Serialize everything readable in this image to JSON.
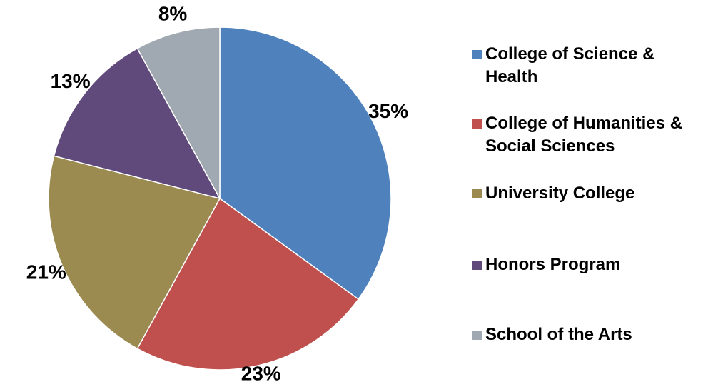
{
  "chart_data": {
    "type": "pie",
    "categories": [
      "College of Science & Health",
      "College of Humanities & Social Sciences",
      "University College",
      "Honors Program",
      "School of the Arts"
    ],
    "values": [
      35,
      23,
      21,
      13,
      8
    ],
    "value_labels": [
      "35%",
      "23%",
      "21%",
      "13%",
      "8%"
    ],
    "colors": [
      "#4f81bd",
      "#c0504d",
      "#9b8b51",
      "#604a7b",
      "#a0a9b2"
    ]
  }
}
